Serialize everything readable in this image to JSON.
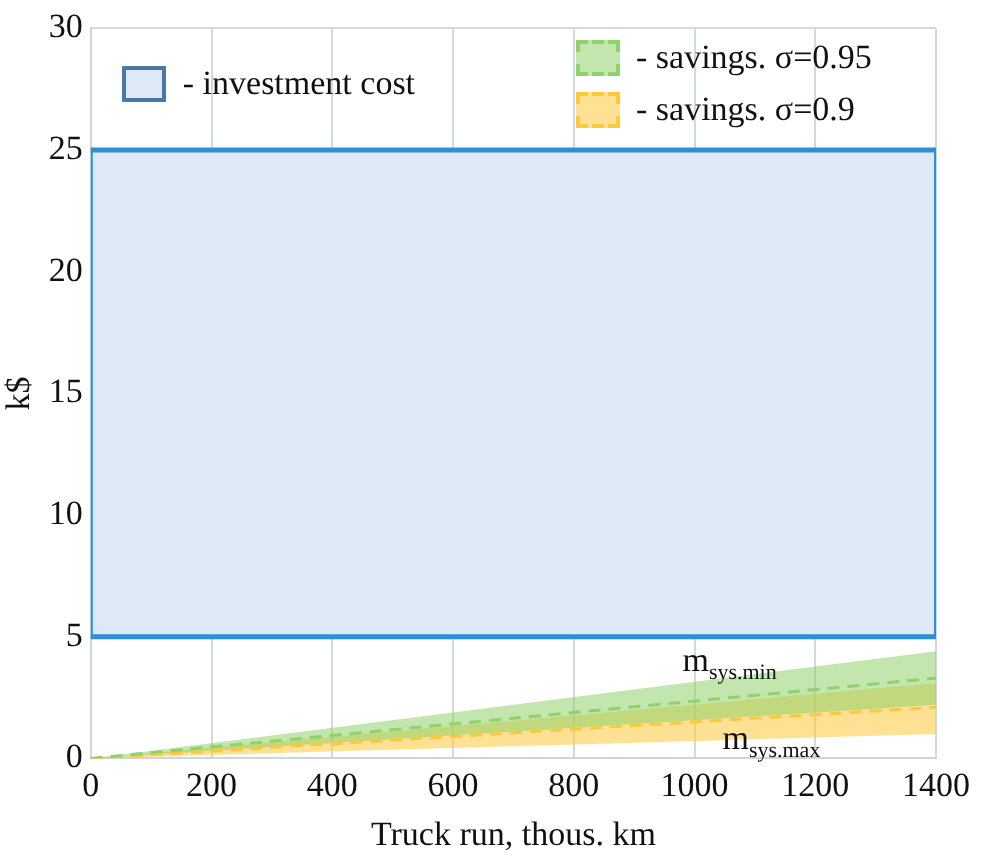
{
  "chart_data": {
    "type": "line",
    "xlabel": "Truck run, thous. km",
    "ylabel": "k$",
    "x": [
      0,
      1400
    ],
    "xlim": [
      0,
      1400
    ],
    "xticks": [
      0,
      200,
      400,
      600,
      800,
      1000,
      1200,
      1400
    ],
    "ylim": [
      0,
      30
    ],
    "yticks": [
      0,
      5,
      10,
      15,
      20,
      25,
      30
    ],
    "grid": true,
    "legend": "top",
    "line_style": "dashed",
    "series": [
      {
        "name": "- savings. σ=0.95",
        "color": "#8fd16a",
        "values": [
          0,
          3.3
        ],
        "lower": [
          0,
          2.2
        ],
        "upper": [
          0,
          4.4
        ]
      },
      {
        "name": "- savings. σ=0.9",
        "color": "#fdc93a",
        "values": [
          0,
          2.1
        ],
        "lower": [
          0,
          1.0
        ],
        "upper": [
          0,
          3.1
        ]
      }
    ],
    "bands": [
      {
        "axis": "y",
        "from": 5,
        "to": 25,
        "label": "- investment cost",
        "color": "#dde9f6"
      }
    ],
    "annotations": [
      "m$_{sys.min}$",
      "m$_{sys.max}$"
    ]
  }
}
